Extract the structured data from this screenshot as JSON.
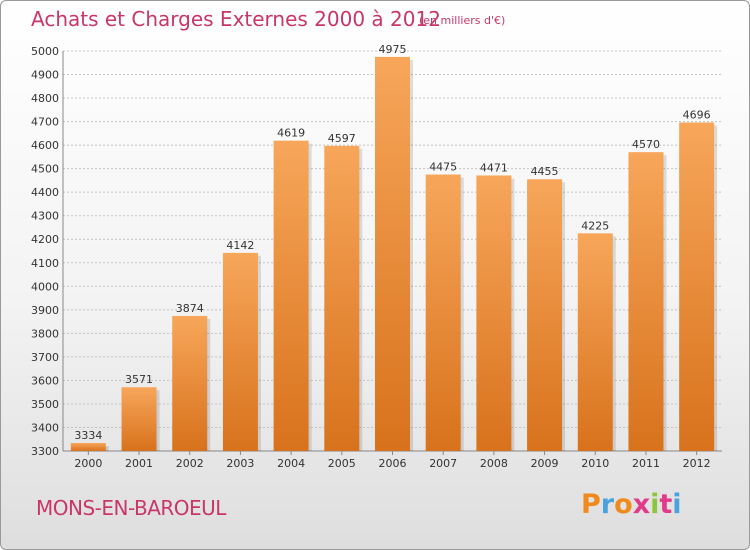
{
  "chart_data": {
    "type": "bar",
    "title": "Achats et Charges Externes 2000 à 2012",
    "unit": "(en milliers d'€)",
    "categories": [
      "2000",
      "2001",
      "2002",
      "2003",
      "2004",
      "2005",
      "2006",
      "2007",
      "2008",
      "2009",
      "2010",
      "2011",
      "2012"
    ],
    "values": [
      3334,
      3571,
      3874,
      4142,
      4619,
      4597,
      4975,
      4475,
      4471,
      4455,
      4225,
      4570,
      4696
    ],
    "ylim": [
      3300,
      5000
    ],
    "yticks": [
      3300,
      3400,
      3500,
      3600,
      3700,
      3800,
      3900,
      4000,
      4100,
      4200,
      4300,
      4400,
      4500,
      4600,
      4700,
      4800,
      4900,
      5000
    ],
    "grid": true,
    "bar_color": "#f0923a",
    "bar_color_dark": "#d8721c"
  },
  "location": "MONS-EN-BAROEUL",
  "logo": {
    "letters": [
      "P",
      "r",
      "o",
      "x",
      "i",
      "t",
      "i"
    ],
    "colors": [
      "#f08a1c",
      "#4aa3df",
      "#f08a1c",
      "#e23a8a",
      "#8cc63f",
      "#e23a8a",
      "#4aa3df"
    ]
  }
}
